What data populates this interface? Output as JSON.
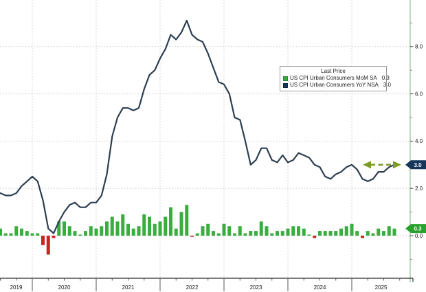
{
  "window": {
    "background": "#ffffff"
  },
  "legend": {
    "title": "Last Price",
    "rows": [
      {
        "label": "US CPI Urban Consumers MoM SA",
        "value": "0.3",
        "color": "#3aad3f"
      },
      {
        "label": "US CPI Urban Consumers YoY NSA",
        "value": "3.0",
        "color": "#16365c"
      }
    ]
  },
  "badges": {
    "yoy": {
      "text": "3.0",
      "color": "#16365c",
      "text_color": "#ffffff"
    },
    "mom": {
      "text": "0.3",
      "color": "#2aa12e",
      "text_color": "#ffffff"
    }
  },
  "chart_data": {
    "type": "combo",
    "x_start": "2019-07",
    "x_freq": "monthly",
    "x_year_labels": [
      "2019",
      "2020",
      "2021",
      "2022",
      "2023",
      "2024",
      "2025"
    ],
    "y_axis": {
      "side": "right",
      "major_ticks": [
        0,
        2,
        4,
        6,
        8
      ],
      "tick_labels": [
        "0.0",
        "2.0",
        "4.0",
        "6.0",
        "8.0"
      ],
      "minor_ticks": [
        -1,
        1,
        3,
        5,
        7,
        9
      ],
      "range": [
        -1.8,
        10.0
      ],
      "grid": "dotted"
    },
    "series": [
      {
        "name": "US CPI Urban Consumers MoM SA",
        "type": "bar",
        "color": "#3aad3f",
        "negative_color": "#cc2222",
        "last_price": 0.3,
        "values": [
          0.3,
          0.1,
          0.1,
          0.4,
          0.3,
          0.2,
          0.1,
          0.1,
          -0.4,
          -0.8,
          -0.1,
          0.6,
          0.6,
          0.4,
          0.2,
          0.05,
          0.2,
          0.4,
          0.3,
          0.4,
          0.6,
          0.8,
          0.6,
          0.9,
          0.5,
          0.3,
          0.4,
          0.9,
          0.8,
          0.5,
          0.6,
          0.8,
          1.2,
          0.3,
          1.0,
          1.3,
          -0.05,
          0.1,
          0.4,
          0.5,
          0.2,
          0.1,
          0.5,
          0.4,
          0.1,
          0.4,
          0.1,
          0.2,
          0.2,
          0.6,
          0.4,
          0.1,
          0.2,
          0.2,
          0.3,
          0.4,
          0.4,
          0.3,
          0.05,
          -0.1,
          0.2,
          0.2,
          0.2,
          0.2,
          0.3,
          0.4,
          0.5,
          0.2,
          -0.1,
          0.2,
          0.1,
          0.3,
          0.2,
          0.4,
          0.3
        ]
      },
      {
        "name": "US CPI Urban Consumers YoY NSA",
        "type": "line",
        "color": "#2c3e50",
        "last_price": 3.0,
        "values": [
          1.8,
          1.7,
          1.7,
          1.8,
          2.1,
          2.3,
          2.5,
          2.3,
          1.5,
          0.3,
          0.1,
          0.6,
          1.0,
          1.3,
          1.4,
          1.2,
          1.2,
          1.4,
          1.4,
          1.7,
          2.6,
          4.2,
          5.0,
          5.4,
          5.4,
          5.3,
          5.4,
          6.2,
          6.8,
          7.0,
          7.5,
          7.9,
          8.5,
          8.3,
          8.6,
          9.1,
          8.5,
          8.3,
          8.2,
          7.7,
          7.1,
          6.5,
          6.4,
          6.0,
          5.0,
          4.9,
          4.0,
          3.0,
          3.2,
          3.7,
          3.7,
          3.2,
          3.1,
          3.4,
          3.1,
          3.2,
          3.5,
          3.4,
          3.3,
          3.0,
          2.9,
          2.5,
          2.4,
          2.6,
          2.7,
          2.9,
          3.0,
          2.8,
          2.4,
          2.3,
          2.4,
          2.7,
          2.7,
          2.9,
          3.0
        ]
      }
    ],
    "annotation": {
      "type": "dashed-double-arrow",
      "color": "#7d9b27",
      "y_value": 3.0,
      "meaning": "YoY rate back at same 3.0 level"
    },
    "frame": {
      "right_spine_color": "#aecbae",
      "bottom_axis_color": "#2b2b2b",
      "grid_color": "#c9c9c9"
    }
  }
}
